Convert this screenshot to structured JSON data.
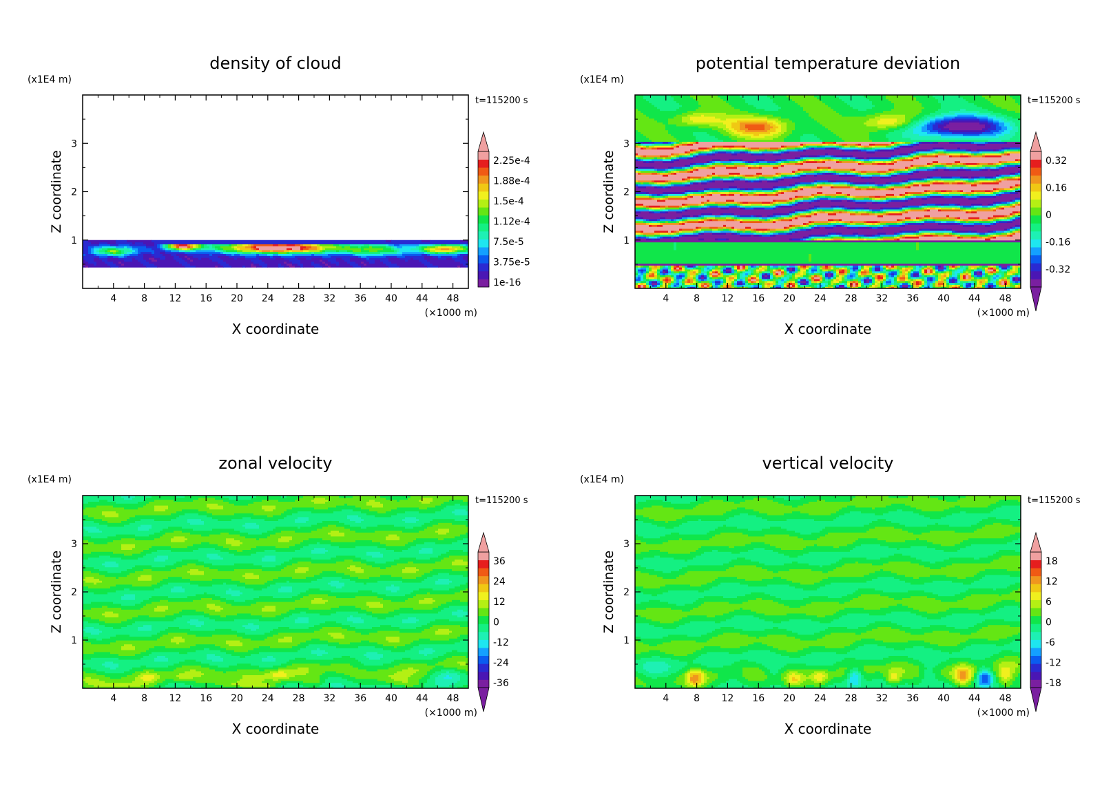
{
  "page": {
    "background": "#ffffff"
  },
  "palette": [
    "#7a1fa0",
    "#4a16b4",
    "#2a2ad2",
    "#0a5cf0",
    "#14a0ff",
    "#1ee6f0",
    "#1ef0b4",
    "#14f082",
    "#10e64a",
    "#64e614",
    "#b4f014",
    "#f0f01e",
    "#f0c814",
    "#f0961e",
    "#f05a14",
    "#e61e1e",
    "#f0a0a0"
  ],
  "chart_data": [
    {
      "id": "cloud",
      "type": "heatmap",
      "title": "density of cloud",
      "xlabel": "X coordinate",
      "ylabel": "Z coordinate",
      "x_unit": "(×1000 m)",
      "y_unit": "(x1E4 m)",
      "time_label": "t=115200 s",
      "xlim": [
        0,
        50
      ],
      "ylim": [
        0,
        4
      ],
      "x_ticks": [
        4,
        8,
        12,
        16,
        20,
        24,
        28,
        32,
        36,
        40,
        44,
        48
      ],
      "y_ticks": [
        1,
        2,
        3
      ],
      "colorbar_labels": [
        "2.25e-4",
        "1.88e-4",
        "1.5e-4",
        "1.12e-4",
        "7.5e-5",
        "3.75e-5",
        "1e-16"
      ],
      "colorbar_arrows": [
        "top"
      ],
      "field": {
        "kind": "cloud",
        "layer": [
          0.45,
          1.0
        ],
        "blobs": [
          {
            "x": 25.5,
            "z": 0.85,
            "rx": 8,
            "rz": 0.12,
            "v": 0.95
          },
          {
            "x": 13,
            "z": 0.88,
            "rx": 2.2,
            "rz": 0.08,
            "v": 0.8
          },
          {
            "x": 47,
            "z": 0.82,
            "rx": 3.5,
            "rz": 0.1,
            "v": 0.7
          },
          {
            "x": 4,
            "z": 0.78,
            "rx": 3,
            "rz": 0.1,
            "v": 0.45
          },
          {
            "x": 38,
            "z": 0.8,
            "rx": 4,
            "rz": 0.12,
            "v": 0.4
          }
        ]
      }
    },
    {
      "id": "theta",
      "type": "heatmap",
      "title": "potential temperature deviation",
      "xlabel": "X coordinate",
      "ylabel": "Z coordinate",
      "x_unit": "(×1000 m)",
      "y_unit": "(x1E4 m)",
      "time_label": "t=115200 s",
      "xlim": [
        0,
        50
      ],
      "ylim": [
        0,
        4
      ],
      "x_ticks": [
        4,
        8,
        12,
        16,
        20,
        24,
        28,
        32,
        36,
        40,
        44,
        48
      ],
      "y_ticks": [
        1,
        2,
        3
      ],
      "colorbar_labels": [
        "0.32",
        "0.16",
        "0",
        "-0.16",
        "-0.32"
      ],
      "colorbar_arrows": [
        "top",
        "bottom"
      ],
      "field": {
        "kind": "theta",
        "blobs": [
          {
            "x": 42,
            "z": 3.35,
            "rx": 6,
            "rz": 0.22,
            "v": -0.45
          },
          {
            "x": 16,
            "z": 3.35,
            "rx": 4,
            "rz": 0.2,
            "v": 0.28
          },
          {
            "x": 33,
            "z": 3.45,
            "rx": 3.5,
            "rz": 0.18,
            "v": 0.22
          },
          {
            "x": 8,
            "z": 3.5,
            "rx": 3,
            "rz": 0.15,
            "v": 0.18
          }
        ]
      }
    },
    {
      "id": "zonal",
      "type": "heatmap",
      "title": "zonal velocity",
      "xlabel": "X coordinate",
      "ylabel": "Z coordinate",
      "x_unit": "(×1000 m)",
      "y_unit": "(x1E4 m)",
      "time_label": "t=115200 s",
      "xlim": [
        0,
        50
      ],
      "ylim": [
        0,
        4
      ],
      "x_ticks": [
        4,
        8,
        12,
        16,
        20,
        24,
        28,
        32,
        36,
        40,
        44,
        48
      ],
      "y_ticks": [
        1,
        2,
        3
      ],
      "colorbar_labels": [
        "36",
        "24",
        "12",
        "0",
        "-12",
        "-24",
        "-36"
      ],
      "colorbar_arrows": [
        "top",
        "bottom"
      ],
      "field": {
        "kind": "velocity",
        "amp": 6,
        "vmax": 42,
        "blobs": [
          {
            "x": 25.5,
            "z": 0.28,
            "rx": 1.5,
            "rz": 0.12,
            "v": 12
          },
          {
            "x": 8.5,
            "z": 0.25,
            "rx": 1.2,
            "rz": 0.1,
            "v": 8
          },
          {
            "x": 13,
            "z": 0.22,
            "rx": 1,
            "rz": 0.08,
            "v": 7
          },
          {
            "x": 20,
            "z": 0.08,
            "rx": 3,
            "rz": 0.08,
            "v": 9
          },
          {
            "x": 5,
            "z": 0.06,
            "rx": 2.5,
            "rz": 0.07,
            "v": 8
          },
          {
            "x": 30,
            "z": 0.15,
            "rx": 1.5,
            "rz": 0.1,
            "v": 7
          },
          {
            "x": 40,
            "z": 0.2,
            "rx": 2,
            "rz": 0.12,
            "v": 6
          },
          {
            "x": 47.5,
            "z": 0.3,
            "rx": 1.8,
            "rz": 0.15,
            "v": -9
          },
          {
            "x": 36,
            "z": 0.45,
            "rx": 2,
            "rz": 0.15,
            "v": -6
          },
          {
            "x": 42,
            "z": 0.1,
            "rx": 2,
            "rz": 0.1,
            "v": 8
          },
          {
            "x": 24,
            "z": 0.05,
            "rx": 1.5,
            "rz": 0.06,
            "v": 7
          }
        ]
      }
    },
    {
      "id": "vertical",
      "type": "heatmap",
      "title": "vertical velocity",
      "xlabel": "X coordinate",
      "ylabel": "Z coordinate",
      "x_unit": "(×1000 m)",
      "y_unit": "(x1E4 m)",
      "time_label": "t=115200 s",
      "xlim": [
        0,
        50
      ],
      "ylim": [
        0,
        4
      ],
      "x_ticks": [
        4,
        8,
        12,
        16,
        20,
        24,
        28,
        32,
        36,
        40,
        44,
        48
      ],
      "y_ticks": [
        1,
        2,
        3
      ],
      "colorbar_labels": [
        "18",
        "12",
        "6",
        "0",
        "-6",
        "-12",
        "-18"
      ],
      "colorbar_arrows": [
        "top",
        "bottom"
      ],
      "field": {
        "kind": "velocity",
        "amp": 2.5,
        "vmax": 21,
        "blobs": [
          {
            "x": 7.8,
            "z": 0.22,
            "rx": 1.1,
            "rz": 0.18,
            "v": 10
          },
          {
            "x": 20.5,
            "z": 0.18,
            "rx": 1,
            "rz": 0.15,
            "v": 7
          },
          {
            "x": 24,
            "z": 0.25,
            "rx": 0.9,
            "rz": 0.15,
            "v": 6
          },
          {
            "x": 28.5,
            "z": 0.25,
            "rx": 1.0,
            "rz": 0.2,
            "v": -10
          },
          {
            "x": 33.5,
            "z": 0.22,
            "rx": 1.0,
            "rz": 0.15,
            "v": 8
          },
          {
            "x": 42.5,
            "z": 0.25,
            "rx": 1.2,
            "rz": 0.2,
            "v": 10
          },
          {
            "x": 45.3,
            "z": 0.22,
            "rx": 1.0,
            "rz": 0.2,
            "v": -12
          },
          {
            "x": 48,
            "z": 0.25,
            "rx": 1.2,
            "rz": 0.2,
            "v": 9
          },
          {
            "x": 2,
            "z": 0.3,
            "rx": 2,
            "rz": 0.25,
            "v": -4
          },
          {
            "x": 38,
            "z": 0.3,
            "rx": 1.2,
            "rz": 0.2,
            "v": -4
          },
          {
            "x": 13,
            "z": 0.3,
            "rx": 1.5,
            "rz": 0.2,
            "v": -3
          },
          {
            "x": 18,
            "z": 0.35,
            "rx": 1.0,
            "rz": 0.15,
            "v": -3
          }
        ]
      }
    }
  ]
}
